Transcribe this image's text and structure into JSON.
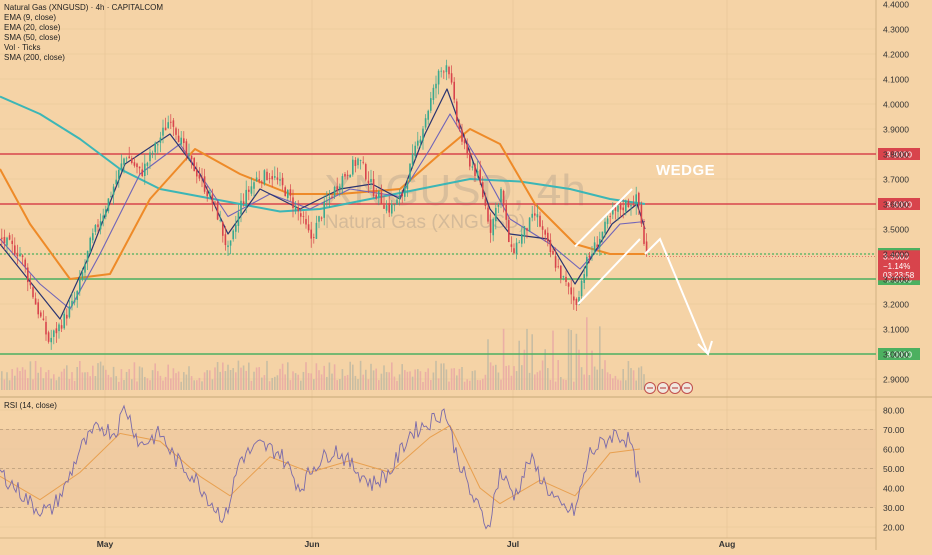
{
  "legend": {
    "title": "Natural Gas (XNGUSD) · 4h · CAPITALCOM",
    "items": [
      "EMA (9, close)",
      "EMA (20, close)",
      "SMA (50, close)",
      "Vol · Ticks",
      "SMA (200, close)"
    ]
  },
  "rsi_label": "RSI (14, close)",
  "watermark": {
    "line1": "XNGUSD, 4h",
    "line2": "Natural Gas (XNGUSD)"
  },
  "annotation": "WEDGE",
  "colors": {
    "background": "#f5d3a6",
    "bull": "#3aa88e",
    "bear": "#d8444c",
    "ema9": "#2a3470",
    "ema20": "#7064b8",
    "sma50": "#ee8a28",
    "sma200": "#3cb6b6",
    "resistance": "#d8444c",
    "support": "#4cb060",
    "rsi": "#7a6aaa",
    "rsi_ma": "#e8a050"
  },
  "price_axis_ticks": [
    "4.4000",
    "4.3000",
    "4.2000",
    "4.1000",
    "4.0000",
    "3.9000",
    "3.8000",
    "3.7000",
    "3.6000",
    "3.5000",
    "3.4000",
    "3.3000",
    "3.2000",
    "3.1000",
    "3.0000",
    "2.9000"
  ],
  "rsi_axis_ticks": [
    "80.00",
    "70.00",
    "60.00",
    "50.00",
    "40.00",
    "30.00",
    "20.00"
  ],
  "time_axis": [
    "May",
    "Jun",
    "Jul",
    "Aug"
  ],
  "current": {
    "price": "3.3909",
    "change": "−1.14%",
    "countdown": "03:23:58"
  },
  "icons": [
    "alert-icon-1",
    "alert-icon-2",
    "alert-icon-3",
    "alert-icon-4"
  ],
  "chart_data": {
    "type": "line",
    "title": "Natural Gas (XNGUSD) · 4h · CAPITALCOM",
    "xlabel": "",
    "ylabel": "",
    "ylim": [
      2.85,
      4.4
    ],
    "horizontal_levels": [
      {
        "value": 3.8,
        "label": "3.8000",
        "color": "#d8444c"
      },
      {
        "value": 3.6,
        "label": "3.6000",
        "color": "#d8444c"
      },
      {
        "value": 3.4,
        "label": "3.4000",
        "color": "#4cb060"
      },
      {
        "value": 3.3,
        "label": "3.3000",
        "color": "#4cb060"
      },
      {
        "value": 3.0,
        "label": "3.0000",
        "color": "#4cb060"
      }
    ],
    "price_path": [
      {
        "x": 0,
        "y": 3.46
      },
      {
        "x": 20,
        "y": 3.4
      },
      {
        "x": 35,
        "y": 3.2
      },
      {
        "x": 48,
        "y": 3.05
      },
      {
        "x": 60,
        "y": 3.12
      },
      {
        "x": 75,
        "y": 3.22
      },
      {
        "x": 90,
        "y": 3.45
      },
      {
        "x": 108,
        "y": 3.62
      },
      {
        "x": 125,
        "y": 3.8
      },
      {
        "x": 140,
        "y": 3.72
      },
      {
        "x": 155,
        "y": 3.83
      },
      {
        "x": 170,
        "y": 3.95
      },
      {
        "x": 185,
        "y": 3.8
      },
      {
        "x": 200,
        "y": 3.7
      },
      {
        "x": 215,
        "y": 3.58
      },
      {
        "x": 228,
        "y": 3.4
      },
      {
        "x": 240,
        "y": 3.6
      },
      {
        "x": 255,
        "y": 3.7
      },
      {
        "x": 270,
        "y": 3.72
      },
      {
        "x": 285,
        "y": 3.65
      },
      {
        "x": 300,
        "y": 3.55
      },
      {
        "x": 310,
        "y": 3.46
      },
      {
        "x": 325,
        "y": 3.6
      },
      {
        "x": 340,
        "y": 3.7
      },
      {
        "x": 358,
        "y": 3.78
      },
      {
        "x": 372,
        "y": 3.66
      },
      {
        "x": 388,
        "y": 3.58
      },
      {
        "x": 400,
        "y": 3.62
      },
      {
        "x": 412,
        "y": 3.78
      },
      {
        "x": 425,
        "y": 3.95
      },
      {
        "x": 438,
        "y": 4.12
      },
      {
        "x": 447,
        "y": 4.17
      },
      {
        "x": 455,
        "y": 3.95
      },
      {
        "x": 465,
        "y": 3.8
      },
      {
        "x": 478,
        "y": 3.7
      },
      {
        "x": 490,
        "y": 3.5
      },
      {
        "x": 500,
        "y": 3.66
      },
      {
        "x": 510,
        "y": 3.4
      },
      {
        "x": 522,
        "y": 3.48
      },
      {
        "x": 535,
        "y": 3.56
      },
      {
        "x": 548,
        "y": 3.42
      },
      {
        "x": 562,
        "y": 3.3
      },
      {
        "x": 575,
        "y": 3.2
      },
      {
        "x": 585,
        "y": 3.36
      },
      {
        "x": 598,
        "y": 3.46
      },
      {
        "x": 612,
        "y": 3.56
      },
      {
        "x": 625,
        "y": 3.6
      },
      {
        "x": 637,
        "y": 3.62
      },
      {
        "x": 645,
        "y": 3.4
      }
    ],
    "series": [
      {
        "name": "EMA (9, close)",
        "values": [
          {
            "x": 0,
            "y": 3.44
          },
          {
            "x": 40,
            "y": 3.24
          },
          {
            "x": 60,
            "y": 3.14
          },
          {
            "x": 90,
            "y": 3.4
          },
          {
            "x": 125,
            "y": 3.76
          },
          {
            "x": 170,
            "y": 3.88
          },
          {
            "x": 200,
            "y": 3.72
          },
          {
            "x": 228,
            "y": 3.48
          },
          {
            "x": 260,
            "y": 3.66
          },
          {
            "x": 300,
            "y": 3.58
          },
          {
            "x": 340,
            "y": 3.66
          },
          {
            "x": 372,
            "y": 3.68
          },
          {
            "x": 400,
            "y": 3.62
          },
          {
            "x": 425,
            "y": 3.88
          },
          {
            "x": 447,
            "y": 4.06
          },
          {
            "x": 465,
            "y": 3.86
          },
          {
            "x": 490,
            "y": 3.58
          },
          {
            "x": 510,
            "y": 3.48
          },
          {
            "x": 548,
            "y": 3.46
          },
          {
            "x": 575,
            "y": 3.28
          },
          {
            "x": 612,
            "y": 3.52
          },
          {
            "x": 637,
            "y": 3.6
          },
          {
            "x": 645,
            "y": 3.5
          }
        ]
      },
      {
        "name": "EMA (20, close)",
        "values": [
          {
            "x": 0,
            "y": 3.46
          },
          {
            "x": 40,
            "y": 3.28
          },
          {
            "x": 70,
            "y": 3.18
          },
          {
            "x": 100,
            "y": 3.4
          },
          {
            "x": 140,
            "y": 3.72
          },
          {
            "x": 180,
            "y": 3.84
          },
          {
            "x": 228,
            "y": 3.55
          },
          {
            "x": 270,
            "y": 3.64
          },
          {
            "x": 310,
            "y": 3.58
          },
          {
            "x": 350,
            "y": 3.66
          },
          {
            "x": 400,
            "y": 3.63
          },
          {
            "x": 430,
            "y": 3.82
          },
          {
            "x": 450,
            "y": 3.96
          },
          {
            "x": 480,
            "y": 3.76
          },
          {
            "x": 510,
            "y": 3.54
          },
          {
            "x": 550,
            "y": 3.44
          },
          {
            "x": 580,
            "y": 3.34
          },
          {
            "x": 620,
            "y": 3.52
          },
          {
            "x": 645,
            "y": 3.53
          }
        ]
      },
      {
        "name": "SMA (50, close)",
        "values": [
          {
            "x": 0,
            "y": 3.74
          },
          {
            "x": 30,
            "y": 3.52
          },
          {
            "x": 70,
            "y": 3.3
          },
          {
            "x": 110,
            "y": 3.32
          },
          {
            "x": 150,
            "y": 3.62
          },
          {
            "x": 195,
            "y": 3.82
          },
          {
            "x": 240,
            "y": 3.72
          },
          {
            "x": 290,
            "y": 3.64
          },
          {
            "x": 340,
            "y": 3.64
          },
          {
            "x": 400,
            "y": 3.66
          },
          {
            "x": 440,
            "y": 3.8
          },
          {
            "x": 470,
            "y": 3.9
          },
          {
            "x": 500,
            "y": 3.84
          },
          {
            "x": 535,
            "y": 3.6
          },
          {
            "x": 575,
            "y": 3.44
          },
          {
            "x": 610,
            "y": 3.4
          },
          {
            "x": 645,
            "y": 3.4
          }
        ]
      },
      {
        "name": "SMA (200, close)",
        "values": [
          {
            "x": 0,
            "y": 4.03
          },
          {
            "x": 40,
            "y": 3.96
          },
          {
            "x": 80,
            "y": 3.86
          },
          {
            "x": 120,
            "y": 3.74
          },
          {
            "x": 160,
            "y": 3.66
          },
          {
            "x": 200,
            "y": 3.63
          },
          {
            "x": 240,
            "y": 3.6
          },
          {
            "x": 280,
            "y": 3.57
          },
          {
            "x": 320,
            "y": 3.58
          },
          {
            "x": 370,
            "y": 3.62
          },
          {
            "x": 420,
            "y": 3.66
          },
          {
            "x": 470,
            "y": 3.7
          },
          {
            "x": 520,
            "y": 3.69
          },
          {
            "x": 570,
            "y": 3.66
          },
          {
            "x": 610,
            "y": 3.62
          },
          {
            "x": 645,
            "y": 3.6
          }
        ]
      }
    ],
    "rsi": {
      "ylim": [
        15,
        85
      ],
      "values": [
        {
          "x": 0,
          "y": 48
        },
        {
          "x": 20,
          "y": 38
        },
        {
          "x": 35,
          "y": 30
        },
        {
          "x": 50,
          "y": 28
        },
        {
          "x": 65,
          "y": 40
        },
        {
          "x": 80,
          "y": 60
        },
        {
          "x": 100,
          "y": 72
        },
        {
          "x": 115,
          "y": 68
        },
        {
          "x": 125,
          "y": 82
        },
        {
          "x": 140,
          "y": 62
        },
        {
          "x": 160,
          "y": 68
        },
        {
          "x": 175,
          "y": 55
        },
        {
          "x": 195,
          "y": 45
        },
        {
          "x": 215,
          "y": 30
        },
        {
          "x": 225,
          "y": 24
        },
        {
          "x": 240,
          "y": 55
        },
        {
          "x": 260,
          "y": 62
        },
        {
          "x": 280,
          "y": 58
        },
        {
          "x": 300,
          "y": 40
        },
        {
          "x": 315,
          "y": 52
        },
        {
          "x": 335,
          "y": 60
        },
        {
          "x": 355,
          "y": 50
        },
        {
          "x": 372,
          "y": 42
        },
        {
          "x": 390,
          "y": 48
        },
        {
          "x": 410,
          "y": 68
        },
        {
          "x": 430,
          "y": 74
        },
        {
          "x": 445,
          "y": 80
        },
        {
          "x": 455,
          "y": 60
        },
        {
          "x": 470,
          "y": 38
        },
        {
          "x": 488,
          "y": 20
        },
        {
          "x": 500,
          "y": 48
        },
        {
          "x": 515,
          "y": 36
        },
        {
          "x": 530,
          "y": 55
        },
        {
          "x": 545,
          "y": 42
        },
        {
          "x": 560,
          "y": 30
        },
        {
          "x": 575,
          "y": 28
        },
        {
          "x": 590,
          "y": 58
        },
        {
          "x": 605,
          "y": 64
        },
        {
          "x": 615,
          "y": 68
        },
        {
          "x": 630,
          "y": 64
        },
        {
          "x": 640,
          "y": 40
        }
      ],
      "ma_values": [
        {
          "x": 0,
          "y": 46
        },
        {
          "x": 40,
          "y": 34
        },
        {
          "x": 80,
          "y": 48
        },
        {
          "x": 120,
          "y": 68
        },
        {
          "x": 160,
          "y": 64
        },
        {
          "x": 200,
          "y": 46
        },
        {
          "x": 230,
          "y": 36
        },
        {
          "x": 270,
          "y": 56
        },
        {
          "x": 310,
          "y": 48
        },
        {
          "x": 350,
          "y": 54
        },
        {
          "x": 390,
          "y": 48
        },
        {
          "x": 430,
          "y": 66
        },
        {
          "x": 450,
          "y": 72
        },
        {
          "x": 480,
          "y": 40
        },
        {
          "x": 500,
          "y": 32
        },
        {
          "x": 540,
          "y": 44
        },
        {
          "x": 575,
          "y": 36
        },
        {
          "x": 610,
          "y": 58
        },
        {
          "x": 640,
          "y": 60
        }
      ]
    },
    "drawings": {
      "wedge_upper": [
        {
          "x": 575,
          "y": 3.43
        },
        {
          "x": 632,
          "y": 3.66
        }
      ],
      "wedge_lower": [
        {
          "x": 578,
          "y": 3.2
        },
        {
          "x": 640,
          "y": 3.46
        }
      ],
      "projection": [
        {
          "x": 645,
          "y": 3.4
        },
        {
          "x": 660,
          "y": 3.46
        },
        {
          "x": 708,
          "y": 3.0
        }
      ]
    }
  }
}
